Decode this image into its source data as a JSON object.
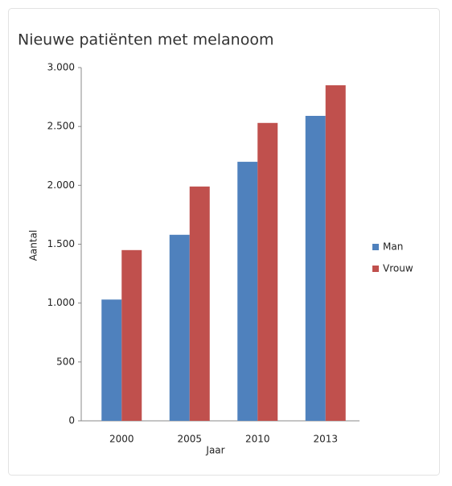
{
  "chart_data": {
    "type": "bar",
    "title": "Nieuwe patiënten met melanoom",
    "xlabel": "Jaar",
    "ylabel": "Aantal",
    "categories": [
      "2000",
      "2005",
      "2010",
      "2013"
    ],
    "series": [
      {
        "name": "Man",
        "color": "#4f81bd",
        "values": [
          1030,
          1580,
          2200,
          2590
        ]
      },
      {
        "name": "Vrouw",
        "color": "#c0504d",
        "values": [
          1450,
          1990,
          2530,
          2850
        ]
      }
    ],
    "ylim": [
      0,
      3000
    ],
    "yticks": [
      0,
      500,
      {
        "value": 1000,
        "label": "1.000"
      },
      {
        "value": 1500,
        "label": "1.500"
      },
      {
        "value": 2000,
        "label": "2.000"
      },
      {
        "value": 2500,
        "label": "2.500"
      },
      {
        "value": 3000,
        "label": "3.000"
      }
    ],
    "legend": "right"
  }
}
